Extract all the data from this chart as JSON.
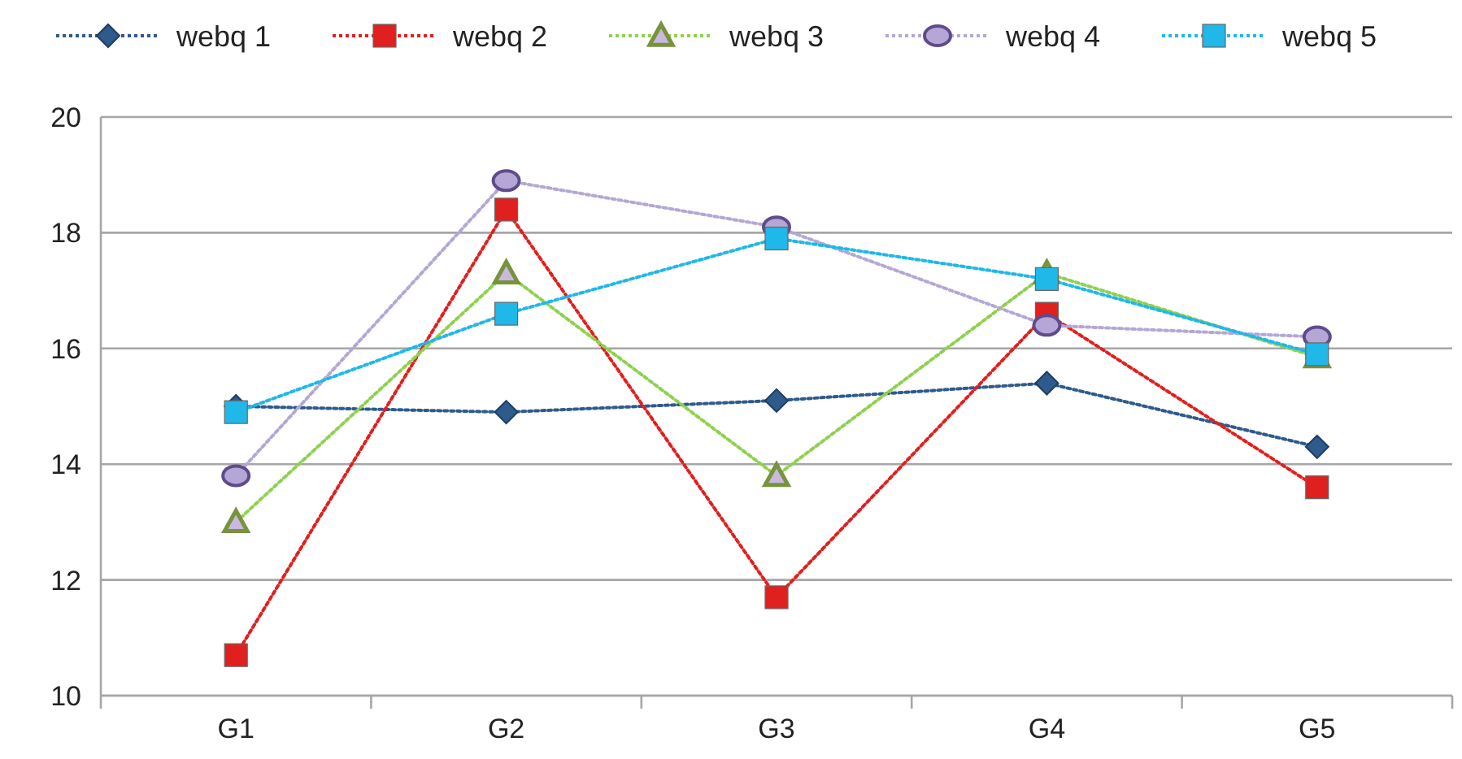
{
  "chart_data": {
    "type": "line",
    "categories": [
      "G1",
      "G2",
      "G3",
      "G4",
      "G5"
    ],
    "ylim": [
      10,
      20
    ],
    "yticks": [
      10,
      12,
      14,
      16,
      18,
      20
    ],
    "grid": "y",
    "legend": "top",
    "line_style": "dotted",
    "series": [
      {
        "name": "webq 1",
        "color": "#2e5a8c",
        "marker": "diamond",
        "values": [
          15.0,
          14.9,
          15.1,
          15.4,
          14.3
        ]
      },
      {
        "name": "webq 2",
        "color": "#e0201e",
        "marker": "square",
        "values": [
          10.7,
          18.4,
          11.7,
          16.6,
          13.6
        ]
      },
      {
        "name": "webq 3",
        "color": "#8fd14f",
        "marker": "triangle",
        "values": [
          13.0,
          17.3,
          13.8,
          17.3,
          15.85
        ]
      },
      {
        "name": "webq 4",
        "color": "#b4a7d6",
        "marker": "circle",
        "values": [
          13.8,
          18.9,
          18.1,
          16.4,
          16.2
        ]
      },
      {
        "name": "webq 5",
        "color": "#1fb8e8",
        "marker": "square",
        "values": [
          14.9,
          16.6,
          17.9,
          17.2,
          15.9
        ]
      }
    ]
  }
}
